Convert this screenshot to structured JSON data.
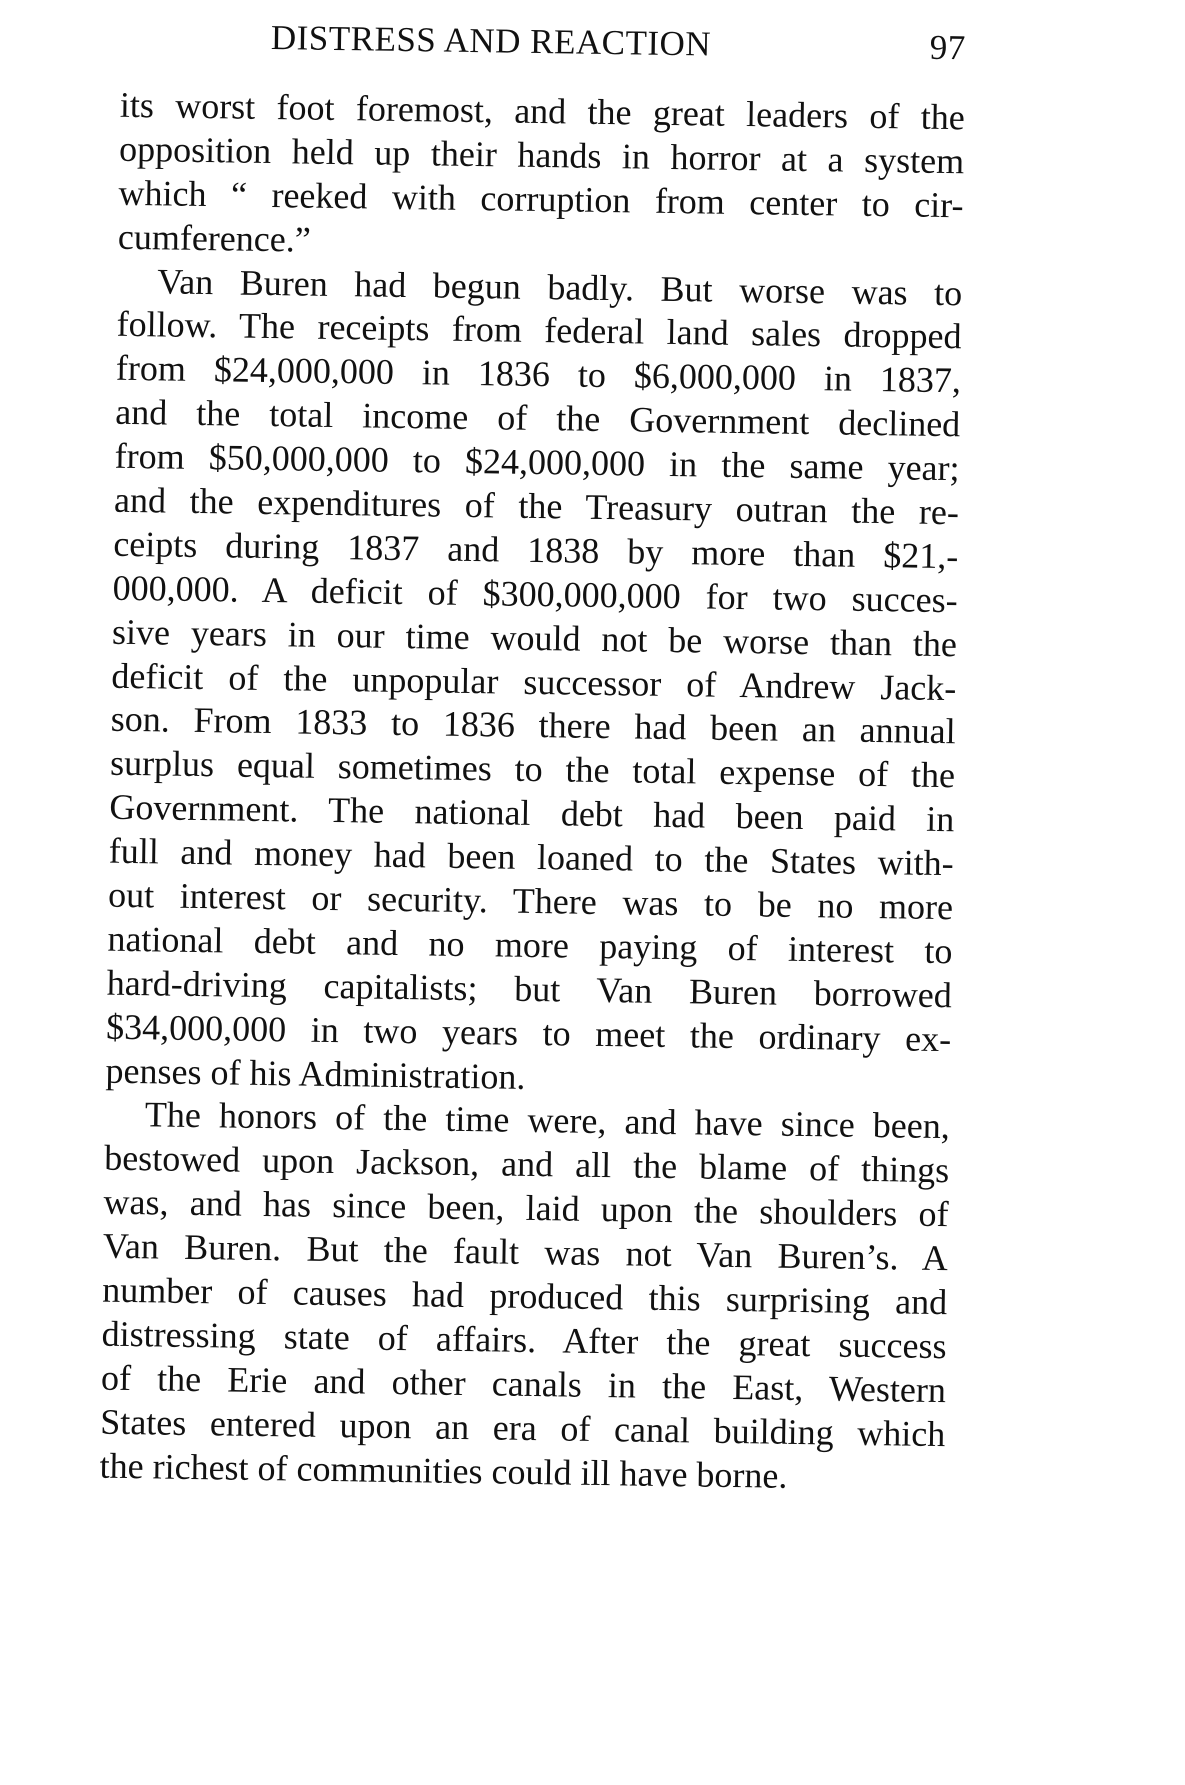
{
  "header": {
    "title": "DISTRESS AND REACTION",
    "page_number": "97"
  },
  "paragraphs": [
    {
      "continued": true,
      "lines": [
        "its worst foot foremost, and the great leaders of the",
        "opposition held up their hands in horror at a system",
        "which “ reeked with corruption from center to cir-",
        "cumference.”"
      ]
    },
    {
      "continued": false,
      "lines": [
        "Van Buren had begun badly. But worse was to",
        "follow. The receipts from federal land sales dropped",
        "from $24,000,000 in 1836 to $6,000,000 in 1837,",
        "and the total income of the Government declined",
        "from $50,000,000 to $24,000,000 in the same year;",
        "and the expenditures of the Treasury outran the re-",
        "ceipts during 1837 and 1838 by more than $21,-",
        "000,000. A deficit of $300,000,000 for two succes-",
        "sive years in our time would not be worse than the",
        "deficit of the unpopular successor of Andrew Jack-",
        "son. From 1833 to 1836 there had been an annual",
        "surplus equal sometimes to the total expense of the",
        "Government. The national debt had been paid in",
        "full and money had been loaned to the States with-",
        "out interest or security. There was to be no more",
        "national debt and no more paying of interest to",
        "hard-driving capitalists; but Van Buren borrowed",
        "$34,000,000 in two years to meet the ordinary ex-",
        "penses of his Administration."
      ]
    },
    {
      "continued": false,
      "lines": [
        "The honors of the time were, and have since been,",
        "bestowed upon Jackson, and all the blame of things",
        "was, and has since been, laid upon the shoulders of",
        "Van Buren. But the fault was not Van Buren’s. A",
        "number of causes had produced this surprising and",
        "distressing state of affairs. After the great success",
        "of the Erie and other canals in the East, Western",
        "States entered upon an era of canal building which",
        "the richest of communities could ill have borne."
      ]
    }
  ]
}
